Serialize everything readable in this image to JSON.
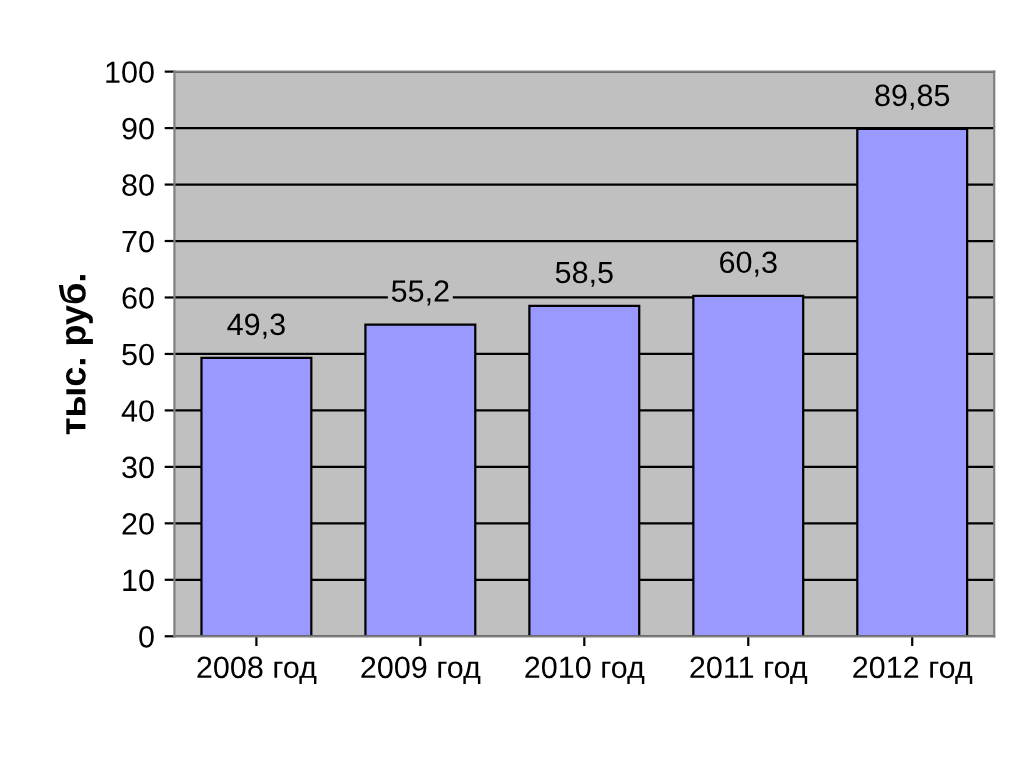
{
  "chart_data": {
    "type": "bar",
    "ylabel": "тыс. руб.",
    "categories": [
      "2008 год",
      "2009 год",
      "2010 год",
      "2011 год",
      "2012 год"
    ],
    "values": [
      49.3,
      55.2,
      58.5,
      60.3,
      89.85
    ],
    "value_labels": [
      "49,3",
      "55,2",
      "58,5",
      "60,3",
      "89,85"
    ],
    "color": "#9999ff",
    "ylim": [
      0,
      100
    ],
    "yticks": [
      0,
      10,
      20,
      30,
      40,
      50,
      60,
      70,
      80,
      90,
      100
    ],
    "grid": "y"
  }
}
